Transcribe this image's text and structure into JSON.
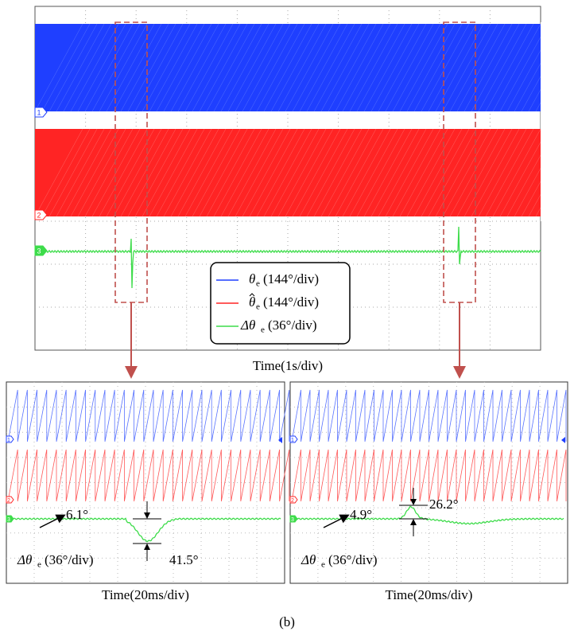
{
  "main": {
    "channels": [
      "1",
      "2",
      "3"
    ],
    "legend": [
      {
        "symbol": "θ",
        "sub": "e",
        "scale": "(144°/div)"
      },
      {
        "symbol": "θ",
        "sub": "e",
        "scale": "(144°/div)"
      },
      {
        "symbol": "Δθ",
        "sub": "e",
        "scale": "(36°/div)"
      }
    ],
    "x_label": "Time(1s/div)"
  },
  "zooms": [
    {
      "channels": [
        "1",
        "2",
        "3"
      ],
      "annotations": [
        "6.1°",
        "41.5°"
      ],
      "label": {
        "symbol": "Δθ",
        "sub": "e",
        "scale": "(36°/div)"
      },
      "x_label": "Time(20ms/div)"
    },
    {
      "channels": [
        "1",
        "2",
        "3"
      ],
      "annotations": [
        "4.9°",
        "26.2°"
      ],
      "label": {
        "symbol": "Δθ",
        "sub": "e",
        "scale": "(36°/div)"
      },
      "x_label": "Time(20ms/div)"
    }
  ],
  "caption": "(b)"
}
